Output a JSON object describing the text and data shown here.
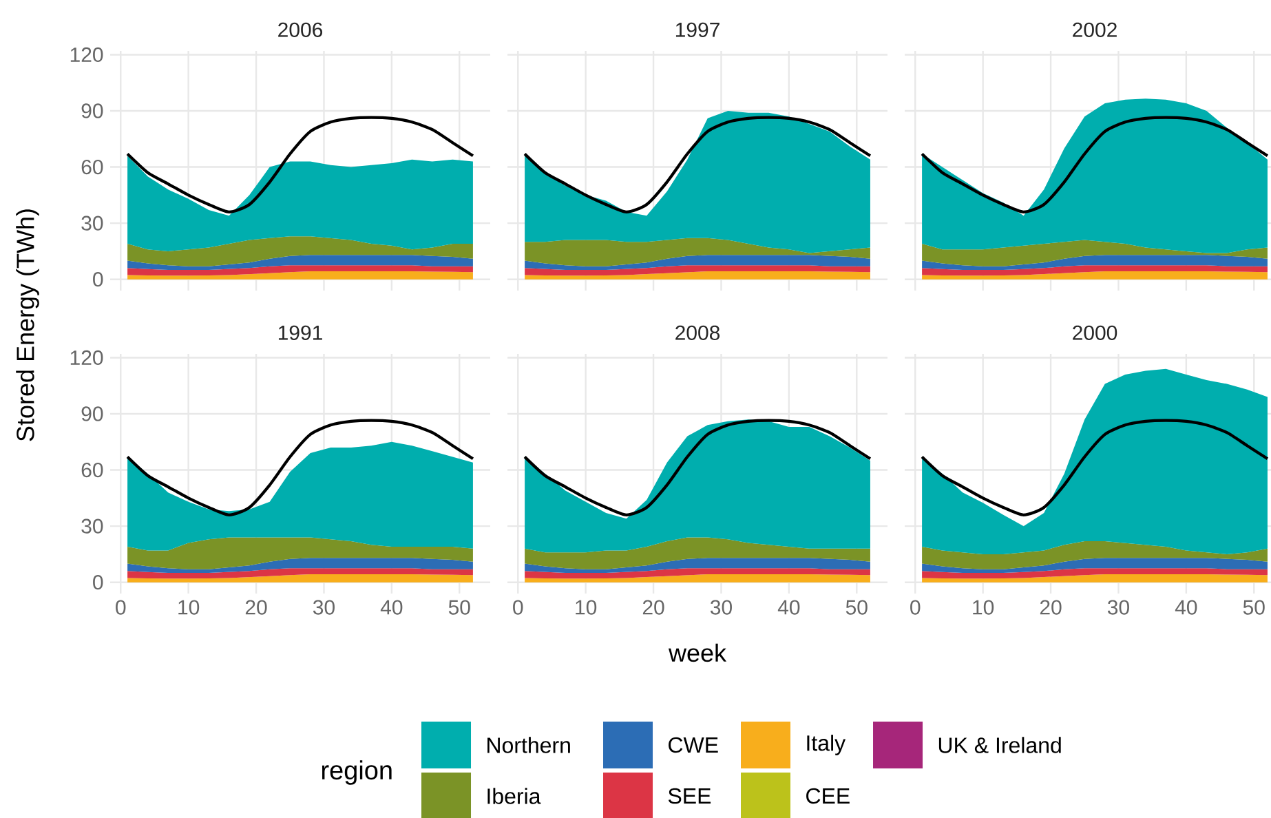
{
  "chart_data": [
    {
      "type": "area",
      "title": "2006",
      "stacked": true,
      "grid": true,
      "tick_labels": "y",
      "x": [
        1,
        4,
        7,
        10,
        13,
        16,
        19,
        22,
        25,
        28,
        31,
        34,
        37,
        40,
        43,
        46,
        49,
        52
      ],
      "xlim": [
        -1.55,
        54.55
      ],
      "ylim": [
        -6,
        122
      ],
      "xticks": [
        0,
        10,
        20,
        30,
        40,
        50
      ],
      "yticks": [
        0,
        30,
        60,
        90,
        120
      ],
      "series": [
        {
          "color": "#f8ae1c",
          "values": [
            2.3,
            2.1,
            2,
            2,
            2.1,
            2.3,
            2.8,
            3.3,
            3.8,
            4.3,
            4.3,
            4.3,
            4.3,
            4.3,
            4.3,
            4.1,
            4,
            3.8
          ]
        },
        {
          "color": "#dc3545",
          "values": [
            3.7,
            3.4,
            3,
            3,
            2.9,
            3.2,
            3.2,
            3.7,
            3.7,
            3.2,
            3.2,
            3.2,
            3.2,
            3.2,
            3.2,
            2.9,
            3,
            3.2
          ]
        },
        {
          "color": "#2c6db5",
          "values": [
            4,
            3,
            2.5,
            2,
            2,
            2.5,
            3,
            4,
            5,
            5.5,
            5.5,
            5.5,
            5.5,
            5.5,
            5.5,
            5.5,
            5,
            4
          ]
        },
        {
          "color": "#7b9326",
          "values": [
            9,
            7.5,
            7.5,
            9,
            10,
            11,
            12,
            11,
            10.5,
            10,
            9,
            8,
            6,
            5,
            3,
            4.5,
            7,
            8
          ]
        },
        {
          "color": "#00aeae",
          "values": [
            47,
            39,
            33,
            27,
            20,
            15,
            24,
            38,
            40,
            40,
            39,
            39,
            42,
            44,
            48,
            46,
            45,
            44
          ]
        },
        {
          "type": "line",
          "color": "#000000",
          "values": [
            67,
            57,
            51,
            45,
            40,
            36,
            40,
            52,
            67,
            79,
            84,
            86,
            86.5,
            86,
            84,
            80,
            73,
            66
          ]
        }
      ]
    },
    {
      "type": "area",
      "title": "1997",
      "stacked": true,
      "grid": true,
      "tick_labels": false,
      "x": [
        1,
        4,
        7,
        10,
        13,
        16,
        19,
        22,
        25,
        28,
        31,
        34,
        37,
        40,
        43,
        46,
        49,
        52
      ],
      "xlim": [
        -1.55,
        54.55
      ],
      "ylim": [
        -6,
        122
      ],
      "xticks": [
        0,
        10,
        20,
        30,
        40,
        50
      ],
      "yticks": [
        0,
        30,
        60,
        90,
        120
      ],
      "series": [
        {
          "color": "#f8ae1c",
          "values": [
            2.3,
            2.1,
            2,
            2,
            2.1,
            2.3,
            2.8,
            3.3,
            3.8,
            4.3,
            4.3,
            4.3,
            4.3,
            4.3,
            4.3,
            4.1,
            4,
            3.8
          ]
        },
        {
          "color": "#dc3545",
          "values": [
            3.7,
            3.4,
            3,
            3,
            2.9,
            3.2,
            3.2,
            3.7,
            3.7,
            3.2,
            3.2,
            3.2,
            3.2,
            3.2,
            3.2,
            2.9,
            3,
            3.2
          ]
        },
        {
          "color": "#2c6db5",
          "values": [
            4,
            3,
            2.5,
            2,
            2,
            2.5,
            3,
            4,
            5,
            5.5,
            5.5,
            5.5,
            5.5,
            5.5,
            5.5,
            5.5,
            5,
            4
          ]
        },
        {
          "color": "#7b9326",
          "values": [
            10,
            11.5,
            13.5,
            14,
            14,
            12,
            11,
            10,
            9.5,
            9,
            8,
            6,
            4,
            3,
            1,
            2.5,
            4,
            6
          ]
        },
        {
          "color": "#00aeae",
          "values": [
            47,
            37,
            29,
            24,
            21,
            16,
            14,
            26,
            42,
            64,
            69,
            70,
            72,
            71,
            69,
            64,
            55,
            47
          ]
        },
        {
          "type": "line",
          "color": "#000000",
          "values": [
            67,
            57,
            51,
            45,
            40,
            36,
            40,
            52,
            67,
            79,
            84,
            86,
            86.5,
            86,
            84,
            80,
            73,
            66
          ]
        }
      ]
    },
    {
      "type": "area",
      "title": "2002",
      "stacked": true,
      "grid": true,
      "tick_labels": false,
      "x": [
        1,
        4,
        7,
        10,
        13,
        16,
        19,
        22,
        25,
        28,
        31,
        34,
        37,
        40,
        43,
        46,
        49,
        52
      ],
      "xlim": [
        -1.55,
        54.55
      ],
      "ylim": [
        -6,
        122
      ],
      "xticks": [
        0,
        10,
        20,
        30,
        40,
        50
      ],
      "yticks": [
        0,
        30,
        60,
        90,
        120
      ],
      "series": [
        {
          "color": "#f8ae1c",
          "values": [
            2.3,
            2.1,
            2,
            2,
            2.1,
            2.3,
            2.8,
            3.3,
            3.8,
            4.3,
            4.3,
            4.3,
            4.3,
            4.3,
            4.3,
            4.1,
            4,
            3.8
          ]
        },
        {
          "color": "#dc3545",
          "values": [
            3.7,
            3.4,
            3,
            3,
            2.9,
            3.2,
            3.2,
            3.7,
            3.7,
            3.2,
            3.2,
            3.2,
            3.2,
            3.2,
            3.2,
            2.9,
            3,
            3.2
          ]
        },
        {
          "color": "#2c6db5",
          "values": [
            4,
            3,
            2.5,
            2,
            2,
            2.5,
            3,
            4,
            5,
            5.5,
            5.5,
            5.5,
            5.5,
            5.5,
            5.5,
            5.5,
            5,
            4
          ]
        },
        {
          "color": "#7b9326",
          "values": [
            9,
            7.5,
            8.5,
            9,
            10,
            10,
            10,
            9,
            8.5,
            7,
            6,
            4,
            3,
            2,
            1,
            1.5,
            4,
            6
          ]
        },
        {
          "color": "#00aeae",
          "values": [
            48,
            44,
            37,
            30,
            24,
            16,
            29,
            50,
            66,
            74,
            77,
            79.5,
            80,
            79,
            76,
            67,
            57,
            47
          ]
        },
        {
          "type": "line",
          "color": "#000000",
          "values": [
            67,
            57,
            51,
            45,
            40,
            36,
            40,
            52,
            67,
            79,
            84,
            86,
            86.5,
            86,
            84,
            80,
            73,
            66
          ]
        }
      ]
    },
    {
      "type": "area",
      "title": "1991",
      "ylabel": "Stored Energy (TWh)",
      "stacked": true,
      "grid": true,
      "x": [
        1,
        4,
        7,
        10,
        13,
        16,
        19,
        22,
        25,
        28,
        31,
        34,
        37,
        40,
        43,
        46,
        49,
        52
      ],
      "xlim": [
        -1.55,
        54.55
      ],
      "ylim": [
        -6,
        122
      ],
      "xticks": [
        0,
        10,
        20,
        30,
        40,
        50
      ],
      "yticks": [
        0,
        30,
        60,
        90,
        120
      ],
      "series": [
        {
          "color": "#f8ae1c",
          "values": [
            2.3,
            2.1,
            2,
            2,
            2.1,
            2.3,
            2.8,
            3.3,
            3.8,
            4.3,
            4.3,
            4.3,
            4.3,
            4.3,
            4.3,
            4.1,
            4,
            3.8
          ]
        },
        {
          "color": "#dc3545",
          "values": [
            3.7,
            3.4,
            3,
            3,
            2.9,
            3.2,
            3.2,
            3.7,
            3.7,
            3.2,
            3.2,
            3.2,
            3.2,
            3.2,
            3.2,
            2.9,
            3,
            3.2
          ]
        },
        {
          "color": "#2c6db5",
          "values": [
            4,
            3,
            2.5,
            2,
            2,
            2.5,
            3,
            4,
            5,
            5.5,
            5.5,
            5.5,
            5.5,
            5.5,
            5.5,
            5.5,
            5,
            4
          ]
        },
        {
          "color": "#7b9326",
          "values": [
            9,
            8.5,
            9.5,
            14,
            16,
            16,
            15,
            13,
            11.5,
            11,
            10,
            9,
            7,
            6,
            6,
            6.5,
            7,
            7
          ]
        },
        {
          "color": "#00aeae",
          "values": [
            48,
            41,
            31,
            22,
            16,
            14,
            15,
            19,
            35,
            45,
            49,
            50,
            53,
            56,
            54,
            51,
            48,
            46
          ]
        },
        {
          "type": "line",
          "color": "#000000",
          "values": [
            67,
            57,
            51,
            45,
            40,
            36,
            40,
            52,
            67,
            79,
            84,
            86,
            86.5,
            86,
            84,
            80,
            73,
            66
          ]
        }
      ]
    },
    {
      "type": "area",
      "title": "2008",
      "xlabel": "week",
      "legend": "bottom",
      "legend_title": "region",
      "stacked": true,
      "grid": true,
      "tick_labels": "x",
      "x": [
        1,
        4,
        7,
        10,
        13,
        16,
        19,
        22,
        25,
        28,
        31,
        34,
        37,
        40,
        43,
        46,
        49,
        52
      ],
      "xlim": [
        -1.55,
        54.55
      ],
      "ylim": [
        -6,
        122
      ],
      "xticks": [
        0,
        10,
        20,
        30,
        40,
        50
      ],
      "yticks": [
        0,
        30,
        60,
        90,
        120
      ],
      "series": [
        {
          "name": "UK & Ireland",
          "color": "#a6267a",
          "values": [
            null,
            null,
            null,
            null,
            null,
            null,
            null,
            null,
            null,
            null,
            null,
            null,
            null,
            null,
            null,
            null,
            null,
            null
          ]
        },
        {
          "name": "CEE",
          "color": "#bcc21b",
          "values": [
            null,
            null,
            null,
            null,
            null,
            null,
            null,
            null,
            null,
            null,
            null,
            null,
            null,
            null,
            null,
            null,
            null,
            null
          ]
        },
        {
          "name": "Italy",
          "color": "#f8ae1c",
          "values": [
            2.3,
            2.1,
            2,
            2,
            2.1,
            2.3,
            2.8,
            3.3,
            3.8,
            4.3,
            4.3,
            4.3,
            4.3,
            4.3,
            4.3,
            4.1,
            4,
            3.8
          ]
        },
        {
          "name": "SEE",
          "color": "#dc3545",
          "values": [
            3.7,
            3.4,
            3,
            3,
            2.9,
            3.2,
            3.2,
            3.7,
            3.7,
            3.2,
            3.2,
            3.2,
            3.2,
            3.2,
            3.2,
            2.9,
            3,
            3.2
          ]
        },
        {
          "name": "CWE",
          "color": "#2c6db5",
          "values": [
            4,
            3,
            2.5,
            2,
            2,
            2.5,
            3,
            4,
            5,
            5.5,
            5.5,
            5.5,
            5.5,
            5.5,
            5.5,
            5.5,
            5,
            4
          ]
        },
        {
          "name": "Iberia",
          "color": "#7b9326",
          "values": [
            8,
            7.5,
            8.5,
            9,
            10,
            9,
            10,
            11,
            11.5,
            11,
            10,
            8,
            7,
            6,
            5,
            5.5,
            6,
            7
          ]
        },
        {
          "name": "Northern",
          "color": "#00aeae",
          "values": [
            49,
            42,
            33,
            27,
            20,
            17,
            25,
            42,
            54,
            60,
            63,
            66,
            66,
            64,
            65,
            60,
            54,
            47
          ]
        },
        {
          "type": "line",
          "color": "#000000",
          "values": [
            67,
            57,
            51,
            45,
            40,
            36,
            40,
            52,
            67,
            79,
            84,
            86,
            86.5,
            86,
            84,
            80,
            73,
            66
          ]
        }
      ]
    },
    {
      "type": "area",
      "title": "2000",
      "stacked": true,
      "grid": true,
      "tick_labels": "x",
      "x": [
        1,
        4,
        7,
        10,
        13,
        16,
        19,
        22,
        25,
        28,
        31,
        34,
        37,
        40,
        43,
        46,
        49,
        52
      ],
      "xlim": [
        -1.55,
        54.55
      ],
      "ylim": [
        -6,
        122
      ],
      "xticks": [
        0,
        10,
        20,
        30,
        40,
        50
      ],
      "yticks": [
        0,
        30,
        60,
        90,
        120
      ],
      "series": [
        {
          "color": "#f8ae1c",
          "values": [
            2.3,
            2.1,
            2,
            2,
            2.1,
            2.3,
            2.8,
            3.3,
            3.8,
            4.3,
            4.3,
            4.3,
            4.3,
            4.3,
            4.3,
            4.1,
            4,
            3.8
          ]
        },
        {
          "color": "#dc3545",
          "values": [
            3.7,
            3.4,
            3,
            3,
            2.9,
            3.2,
            3.2,
            3.7,
            3.7,
            3.2,
            3.2,
            3.2,
            3.2,
            3.2,
            3.2,
            2.9,
            3,
            3.2
          ]
        },
        {
          "color": "#2c6db5",
          "values": [
            4,
            3,
            2.5,
            2,
            2,
            2.5,
            3,
            4,
            5,
            5.5,
            5.5,
            5.5,
            5.5,
            5.5,
            5.5,
            5.5,
            5,
            4
          ]
        },
        {
          "color": "#7b9326",
          "values": [
            9,
            8.5,
            8.5,
            8,
            8,
            8,
            8,
            9,
            9.5,
            9,
            8,
            7,
            6,
            4,
            3,
            2.5,
            4,
            7
          ]
        },
        {
          "color": "#00aeae",
          "values": [
            48,
            41,
            32,
            27.5,
            21,
            14,
            20,
            38,
            65,
            84,
            90,
            93,
            95,
            94,
            92,
            91,
            87,
            81
          ]
        },
        {
          "type": "line",
          "color": "#000000",
          "values": [
            67,
            57,
            51,
            45,
            40,
            36,
            40,
            52,
            67,
            79,
            84,
            86,
            86.5,
            86,
            84,
            80,
            73,
            66
          ]
        }
      ]
    }
  ]
}
